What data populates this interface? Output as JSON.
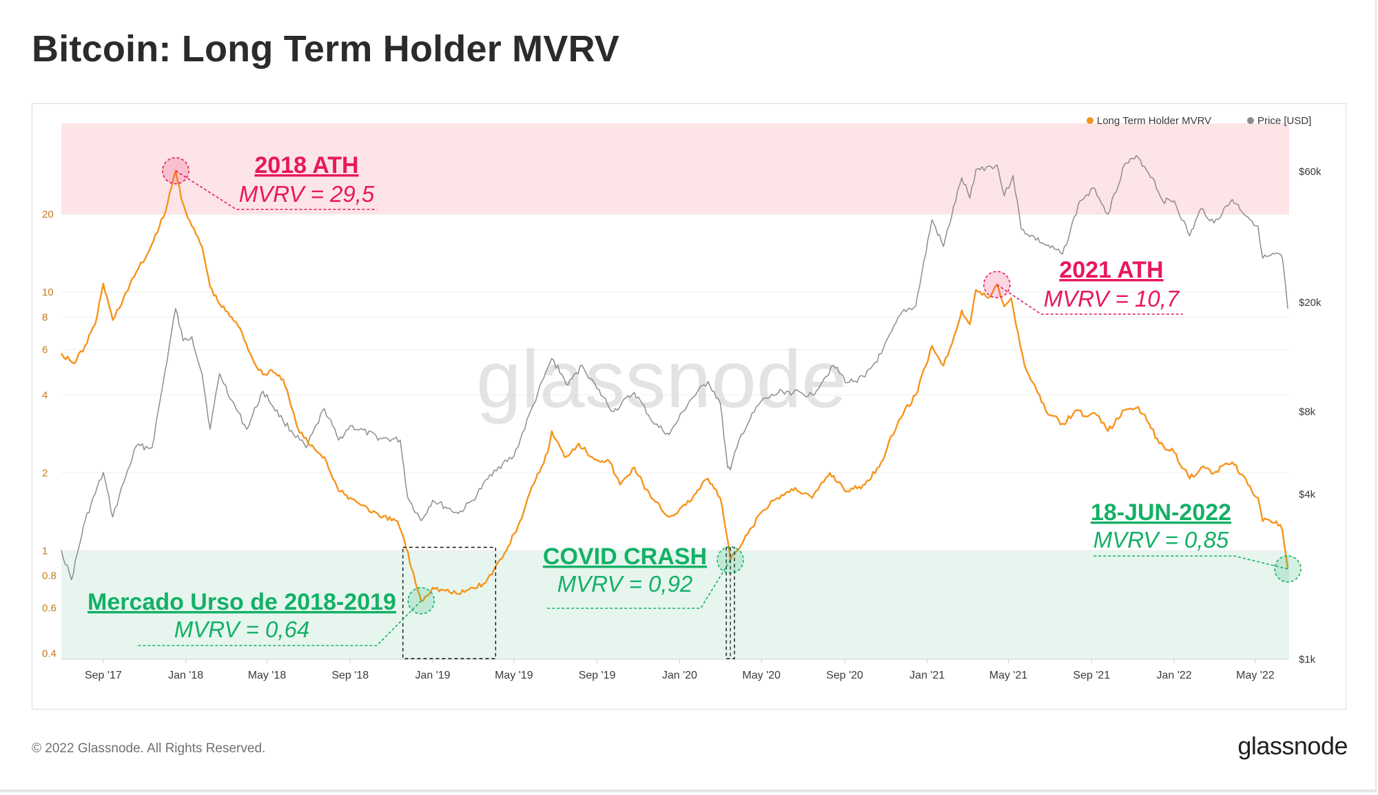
{
  "page": {
    "title": "Bitcoin: Long Term Holder MVRV",
    "copyright": "© 2022 Glassnode. All Rights Reserved.",
    "brand": "glassnode",
    "watermark": "glassnode"
  },
  "colors": {
    "mvrv": "#f7931a",
    "price": "#8c8c8c",
    "top_band": "#fde4e6",
    "bottom_band": "#e6f6ee",
    "ath_text": "#e8175d",
    "low_text": "#14b066"
  },
  "chart_data": {
    "type": "line",
    "title": "Bitcoin: Long Term Holder MVRV",
    "legend": [
      {
        "name": "Long Term Holder MVRV",
        "color": "#f7931a"
      },
      {
        "name": "Price [USD]",
        "color": "#8c8c8c"
      }
    ],
    "legend_position": "top-right",
    "x_axis": {
      "range": [
        "2017-07-01",
        "2022-06-20"
      ],
      "ticks": [
        {
          "date": "2017-09-01",
          "label": "Sep '17"
        },
        {
          "date": "2018-01-01",
          "label": "Jan '18"
        },
        {
          "date": "2018-05-01",
          "label": "May '18"
        },
        {
          "date": "2018-09-01",
          "label": "Sep '18"
        },
        {
          "date": "2019-01-01",
          "label": "Jan '19"
        },
        {
          "date": "2019-05-01",
          "label": "May '19"
        },
        {
          "date": "2019-09-01",
          "label": "Sep '19"
        },
        {
          "date": "2020-01-01",
          "label": "Jan '20"
        },
        {
          "date": "2020-05-01",
          "label": "May '20"
        },
        {
          "date": "2020-09-01",
          "label": "Sep '20"
        },
        {
          "date": "2021-01-01",
          "label": "Jan '21"
        },
        {
          "date": "2021-05-01",
          "label": "May '21"
        },
        {
          "date": "2021-09-01",
          "label": "Sep '21"
        },
        {
          "date": "2022-01-01",
          "label": "Jan '22"
        },
        {
          "date": "2022-05-01",
          "label": "May '22"
        }
      ]
    },
    "y_left": {
      "scale": "log",
      "range": [
        0.38,
        45
      ],
      "ticks": [
        {
          "value": 0.4,
          "label": "0.4"
        },
        {
          "value": 0.6,
          "label": "0.6"
        },
        {
          "value": 0.8,
          "label": "0.8"
        },
        {
          "value": 1,
          "label": "1"
        },
        {
          "value": 2,
          "label": "2"
        },
        {
          "value": 4,
          "label": "4"
        },
        {
          "value": 6,
          "label": "6"
        },
        {
          "value": 8,
          "label": "8"
        },
        {
          "value": 10,
          "label": "10"
        },
        {
          "value": 20,
          "label": "20"
        }
      ]
    },
    "y_right": {
      "scale": "log",
      "range": [
        1000,
        90000
      ],
      "ticks": [
        {
          "value": 1000,
          "label": "$1k"
        },
        {
          "value": 4000,
          "label": "$4k"
        },
        {
          "value": 8000,
          "label": "$8k"
        },
        {
          "value": 20000,
          "label": "$20k"
        },
        {
          "value": 60000,
          "label": "$60k"
        }
      ]
    },
    "bands": [
      {
        "name": "overvalued-zone",
        "from": 20,
        "to": 45,
        "color": "#fde4e6"
      },
      {
        "name": "undervalued-zone",
        "from": 0.38,
        "to": 1,
        "color": "#e6f6ee"
      }
    ],
    "series": [
      {
        "name": "Long Term Holder MVRV",
        "axis": "left",
        "points": [
          [
            "2017-07-01",
            5.8
          ],
          [
            "2017-07-20",
            5.3
          ],
          [
            "2017-08-05",
            6.2
          ],
          [
            "2017-08-20",
            7.5
          ],
          [
            "2017-09-01",
            10.8
          ],
          [
            "2017-09-15",
            7.8
          ],
          [
            "2017-10-01",
            9.5
          ],
          [
            "2017-10-20",
            12.0
          ],
          [
            "2017-11-05",
            14.0
          ],
          [
            "2017-11-20",
            17.0
          ],
          [
            "2017-12-05",
            22.0
          ],
          [
            "2017-12-17",
            29.5
          ],
          [
            "2017-12-28",
            22.0
          ],
          [
            "2018-01-10",
            18.0
          ],
          [
            "2018-01-25",
            15.0
          ],
          [
            "2018-02-06",
            10.5
          ],
          [
            "2018-02-20",
            9.0
          ],
          [
            "2018-03-10",
            8.0
          ],
          [
            "2018-03-25",
            7.0
          ],
          [
            "2018-04-10",
            5.5
          ],
          [
            "2018-04-25",
            4.8
          ],
          [
            "2018-05-08",
            5.0
          ],
          [
            "2018-05-25",
            4.6
          ],
          [
            "2018-06-15",
            3.0
          ],
          [
            "2018-07-01",
            2.6
          ],
          [
            "2018-07-25",
            2.3
          ],
          [
            "2018-08-15",
            1.7
          ],
          [
            "2018-09-01",
            1.6
          ],
          [
            "2018-09-20",
            1.5
          ],
          [
            "2018-10-15",
            1.35
          ],
          [
            "2018-11-10",
            1.3
          ],
          [
            "2018-11-20",
            1.1
          ],
          [
            "2018-12-01",
            0.85
          ],
          [
            "2018-12-15",
            0.64
          ],
          [
            "2019-01-01",
            0.72
          ],
          [
            "2019-01-20",
            0.7
          ],
          [
            "2019-02-08",
            0.68
          ],
          [
            "2019-03-01",
            0.72
          ],
          [
            "2019-03-20",
            0.75
          ],
          [
            "2019-04-02",
            0.85
          ],
          [
            "2019-04-20",
            1.0
          ],
          [
            "2019-05-10",
            1.3
          ],
          [
            "2019-05-30",
            1.8
          ],
          [
            "2019-06-20",
            2.4
          ],
          [
            "2019-06-26",
            2.9
          ],
          [
            "2019-07-15",
            2.3
          ],
          [
            "2019-08-05",
            2.6
          ],
          [
            "2019-08-25",
            2.3
          ],
          [
            "2019-09-20",
            2.2
          ],
          [
            "2019-10-05",
            1.8
          ],
          [
            "2019-10-26",
            2.1
          ],
          [
            "2019-11-20",
            1.6
          ],
          [
            "2019-12-17",
            1.35
          ],
          [
            "2020-01-10",
            1.5
          ],
          [
            "2020-02-12",
            1.9
          ],
          [
            "2020-03-01",
            1.6
          ],
          [
            "2020-03-12",
            1.1
          ],
          [
            "2020-03-16",
            0.92
          ],
          [
            "2020-04-01",
            1.05
          ],
          [
            "2020-04-30",
            1.4
          ],
          [
            "2020-05-25",
            1.6
          ],
          [
            "2020-06-20",
            1.75
          ],
          [
            "2020-07-15",
            1.6
          ],
          [
            "2020-08-10",
            2.0
          ],
          [
            "2020-09-05",
            1.7
          ],
          [
            "2020-10-01",
            1.8
          ],
          [
            "2020-10-25",
            2.2
          ],
          [
            "2020-11-20",
            3.2
          ],
          [
            "2020-12-15",
            4.0
          ],
          [
            "2021-01-08",
            6.2
          ],
          [
            "2021-01-25",
            5.2
          ],
          [
            "2021-02-10",
            6.8
          ],
          [
            "2021-02-21",
            8.5
          ],
          [
            "2021-03-05",
            7.5
          ],
          [
            "2021-03-14",
            10.2
          ],
          [
            "2021-04-01",
            9.5
          ],
          [
            "2021-04-14",
            10.7
          ],
          [
            "2021-04-25",
            8.8
          ],
          [
            "2021-05-05",
            9.5
          ],
          [
            "2021-05-15",
            7.0
          ],
          [
            "2021-05-25",
            5.2
          ],
          [
            "2021-06-10",
            4.3
          ],
          [
            "2021-06-25",
            3.5
          ],
          [
            "2021-07-20",
            3.1
          ],
          [
            "2021-08-10",
            3.5
          ],
          [
            "2021-08-25",
            3.3
          ],
          [
            "2021-09-06",
            3.4
          ],
          [
            "2021-09-25",
            2.9
          ],
          [
            "2021-10-20",
            3.5
          ],
          [
            "2021-11-09",
            3.6
          ],
          [
            "2021-11-25",
            3.1
          ],
          [
            "2021-12-10",
            2.6
          ],
          [
            "2022-01-01",
            2.4
          ],
          [
            "2022-01-24",
            1.9
          ],
          [
            "2022-02-10",
            2.1
          ],
          [
            "2022-03-01",
            2.0
          ],
          [
            "2022-03-28",
            2.2
          ],
          [
            "2022-04-20",
            1.8
          ],
          [
            "2022-05-05",
            1.6
          ],
          [
            "2022-05-12",
            1.3
          ],
          [
            "2022-06-01",
            1.3
          ],
          [
            "2022-06-10",
            1.2
          ],
          [
            "2022-06-18",
            0.85
          ]
        ]
      },
      {
        "name": "Price [USD]",
        "axis": "right",
        "points": [
          [
            "2017-07-01",
            2500
          ],
          [
            "2017-07-16",
            1950
          ],
          [
            "2017-08-05",
            3200
          ],
          [
            "2017-09-01",
            4800
          ],
          [
            "2017-09-15",
            3300
          ],
          [
            "2017-10-01",
            4400
          ],
          [
            "2017-10-20",
            6000
          ],
          [
            "2017-11-12",
            5900
          ],
          [
            "2017-11-28",
            10000
          ],
          [
            "2017-12-17",
            19000
          ],
          [
            "2017-12-28",
            14500
          ],
          [
            "2018-01-10",
            15000
          ],
          [
            "2018-01-25",
            11000
          ],
          [
            "2018-02-06",
            6900
          ],
          [
            "2018-02-20",
            11000
          ],
          [
            "2018-03-10",
            8800
          ],
          [
            "2018-04-01",
            6900
          ],
          [
            "2018-04-25",
            9500
          ],
          [
            "2018-05-25",
            7400
          ],
          [
            "2018-06-28",
            5900
          ],
          [
            "2018-07-25",
            8200
          ],
          [
            "2018-08-15",
            6300
          ],
          [
            "2018-09-01",
            7100
          ],
          [
            "2018-10-15",
            6400
          ],
          [
            "2018-11-14",
            6300
          ],
          [
            "2018-11-25",
            3900
          ],
          [
            "2018-12-15",
            3200
          ],
          [
            "2019-01-01",
            3800
          ],
          [
            "2019-02-08",
            3400
          ],
          [
            "2019-03-01",
            3800
          ],
          [
            "2019-04-02",
            4900
          ],
          [
            "2019-05-01",
            5500
          ],
          [
            "2019-05-30",
            8500
          ],
          [
            "2019-06-26",
            12500
          ],
          [
            "2019-07-20",
            10000
          ],
          [
            "2019-08-10",
            11800
          ],
          [
            "2019-09-01",
            9700
          ],
          [
            "2019-09-25",
            8000
          ],
          [
            "2019-10-26",
            9400
          ],
          [
            "2019-11-25",
            7200
          ],
          [
            "2019-12-17",
            6600
          ],
          [
            "2020-01-15",
            8700
          ],
          [
            "2020-02-12",
            10300
          ],
          [
            "2020-03-01",
            8600
          ],
          [
            "2020-03-12",
            5000
          ],
          [
            "2020-03-16",
            4900
          ],
          [
            "2020-04-01",
            6600
          ],
          [
            "2020-04-30",
            8700
          ],
          [
            "2020-06-01",
            9500
          ],
          [
            "2020-07-15",
            9200
          ],
          [
            "2020-08-15",
            11800
          ],
          [
            "2020-09-05",
            10200
          ],
          [
            "2020-10-01",
            10700
          ],
          [
            "2020-10-25",
            13000
          ],
          [
            "2020-11-25",
            18500
          ],
          [
            "2020-12-15",
            19400
          ],
          [
            "2021-01-08",
            40000
          ],
          [
            "2021-01-25",
            32000
          ],
          [
            "2021-02-21",
            57000
          ],
          [
            "2021-03-05",
            48000
          ],
          [
            "2021-03-14",
            61000
          ],
          [
            "2021-04-14",
            63500
          ],
          [
            "2021-04-25",
            49000
          ],
          [
            "2021-05-08",
            58000
          ],
          [
            "2021-05-20",
            37000
          ],
          [
            "2021-06-20",
            33000
          ],
          [
            "2021-07-20",
            30000
          ],
          [
            "2021-08-15",
            47000
          ],
          [
            "2021-09-06",
            52000
          ],
          [
            "2021-09-25",
            42000
          ],
          [
            "2021-10-20",
            64000
          ],
          [
            "2021-11-09",
            67500
          ],
          [
            "2021-11-30",
            57000
          ],
          [
            "2021-12-15",
            47000
          ],
          [
            "2022-01-01",
            47000
          ],
          [
            "2022-01-24",
            35000
          ],
          [
            "2022-02-10",
            44000
          ],
          [
            "2022-03-01",
            39000
          ],
          [
            "2022-03-28",
            47500
          ],
          [
            "2022-04-20",
            41000
          ],
          [
            "2022-05-05",
            38000
          ],
          [
            "2022-05-12",
            29000
          ],
          [
            "2022-06-05",
            30000
          ],
          [
            "2022-06-10",
            29000
          ],
          [
            "2022-06-18",
            19000
          ]
        ]
      }
    ],
    "annotations": [
      {
        "id": "ath-2018",
        "date": "2017-12-17",
        "value": 29.5,
        "title": "2018 ATH",
        "subtitle": "MVRV = 29,5",
        "color": "#e8175d",
        "kind": "high",
        "box": null
      },
      {
        "id": "ath-2021",
        "date": "2021-04-14",
        "value": 10.7,
        "title": "2021 ATH",
        "subtitle": "MVRV = 10,7",
        "color": "#e8175d",
        "kind": "high",
        "box": null
      },
      {
        "id": "bear-2018-2019",
        "date": "2018-12-15",
        "value": 0.64,
        "title": "Mercado Urso de 2018-2019",
        "subtitle": "MVRV = 0,64",
        "color": "#14b066",
        "kind": "low",
        "box": [
          "2018-11-20",
          "2019-04-02"
        ]
      },
      {
        "id": "covid-crash",
        "date": "2020-03-16",
        "value": 0.92,
        "title": "COVID CRASH",
        "subtitle": "MVRV = 0,92",
        "color": "#14b066",
        "kind": "low",
        "box": [
          "2020-03-12",
          "2020-03-20"
        ]
      },
      {
        "id": "jun-2022",
        "date": "2022-06-18",
        "value": 0.85,
        "title": "18-JUN-2022",
        "subtitle": "MVRV = 0,85",
        "color": "#14b066",
        "kind": "low",
        "box": null
      }
    ]
  }
}
